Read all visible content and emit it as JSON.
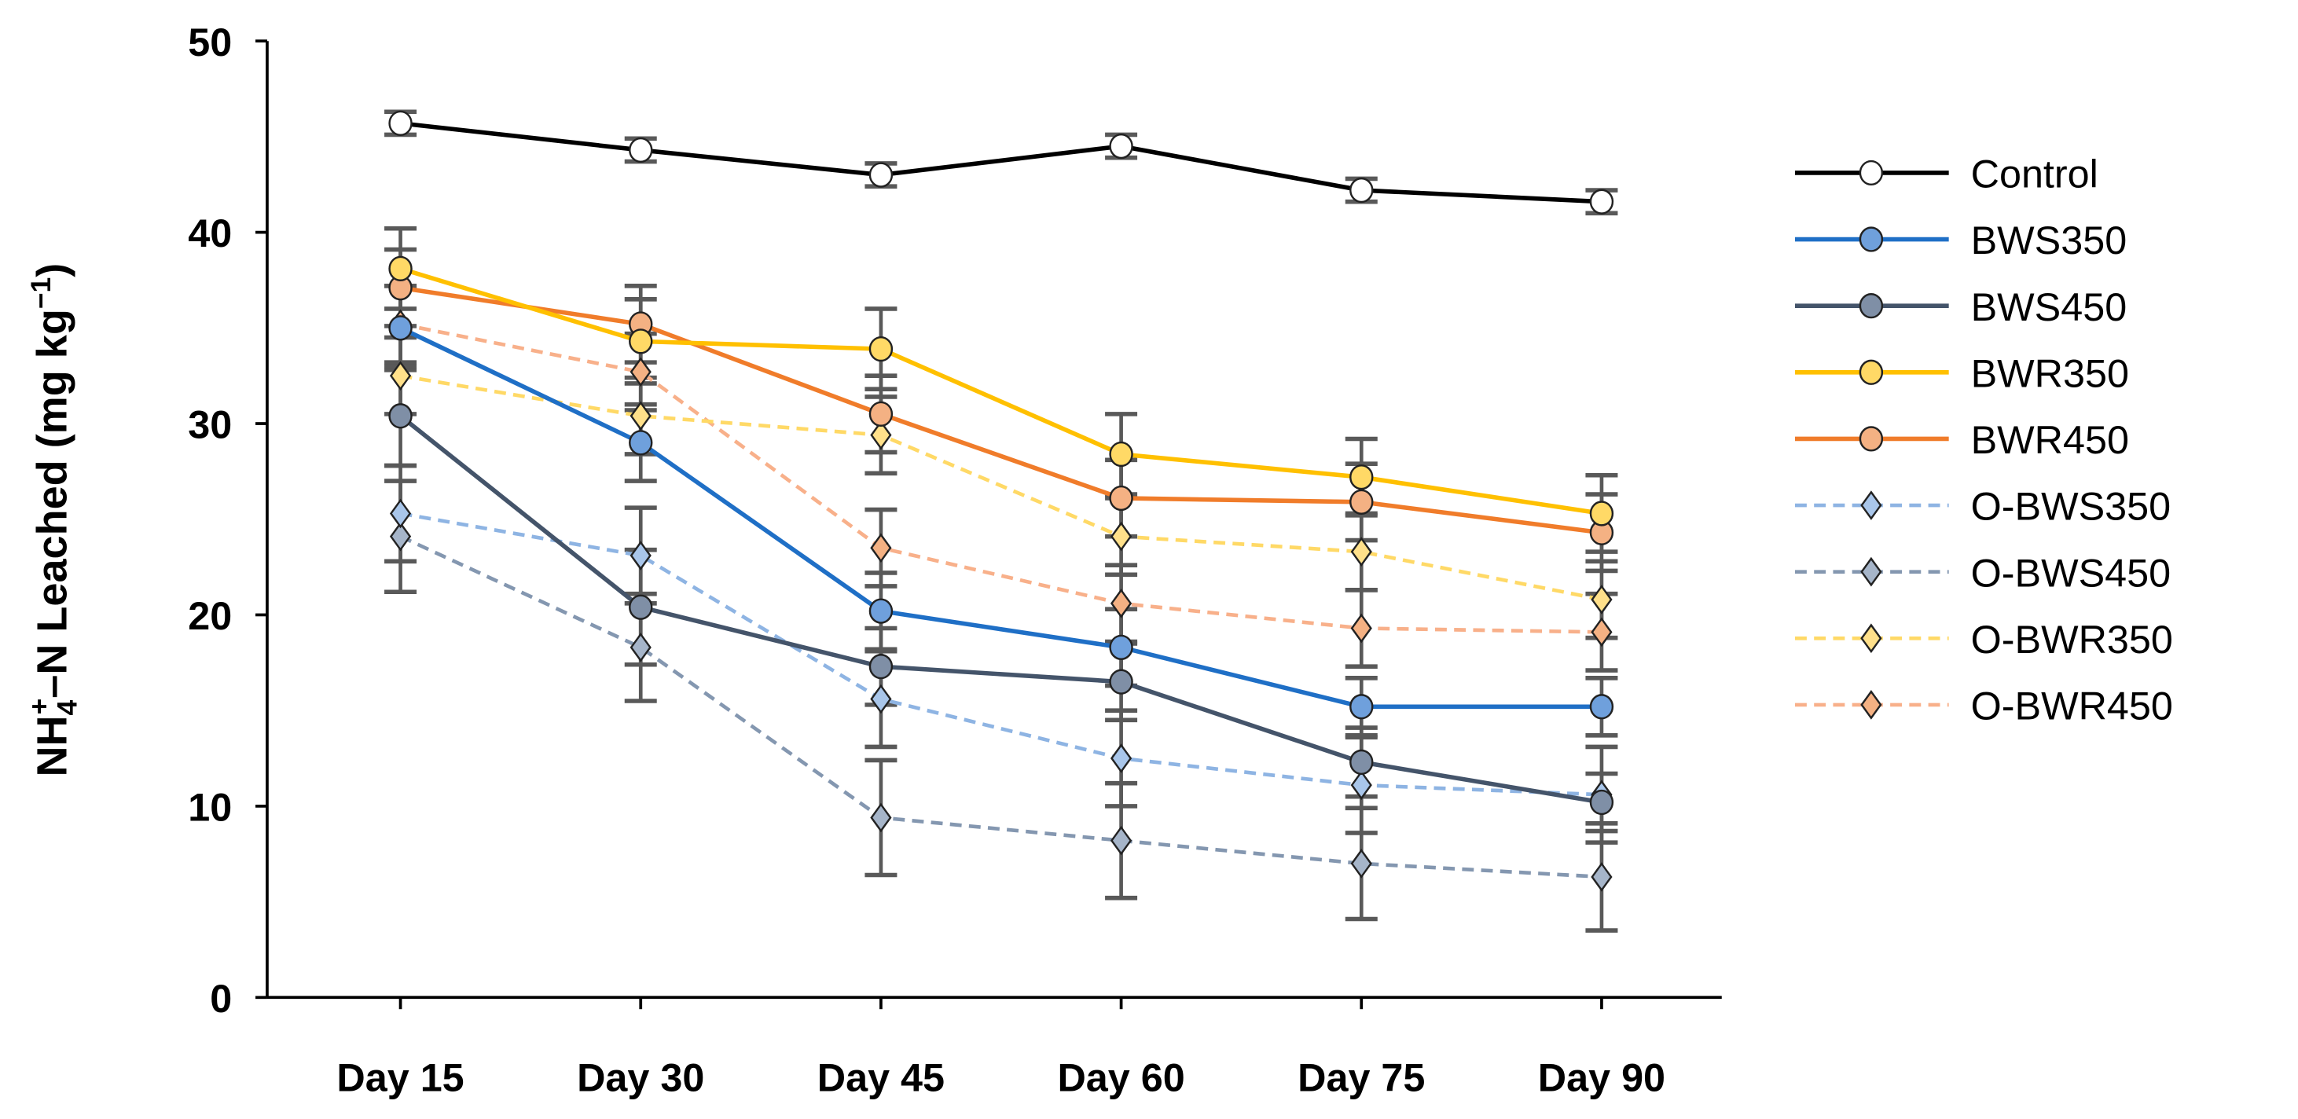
{
  "chart_data": {
    "type": "line",
    "title": "",
    "xlabel": "",
    "ylabel": "NH4+–N Leached (mg kg−1)",
    "ylabel_parts": {
      "main": "NH",
      "sub": "4",
      "sup": "+",
      "rest": "–N Leached (mg kg",
      "unit_sup": "−1",
      "close": ")"
    },
    "categories": [
      "Day 15",
      "Day 30",
      "Day 45",
      "Day 60",
      "Day 75",
      "Day 90"
    ],
    "ylim": [
      0,
      50
    ],
    "yticks": [
      0,
      10,
      20,
      30,
      40,
      50
    ],
    "grid": false,
    "legend_position": "right",
    "series": [
      {
        "name": "Control",
        "color": "#000000",
        "fill": "#ffffff",
        "marker": "circle",
        "dash": false,
        "values": [
          45.7,
          44.3,
          43.0,
          44.5,
          42.2,
          41.6
        ],
        "errors": [
          0.6,
          0.6,
          0.6,
          0.6,
          0.6,
          0.6
        ]
      },
      {
        "name": "BWS350",
        "color": "#1f6fc6",
        "fill": "#6fa0dc",
        "marker": "circle",
        "dash": false,
        "values": [
          35.0,
          29.0,
          20.2,
          18.3,
          15.2,
          15.2
        ],
        "errors": [
          2.2,
          2.0,
          2.0,
          2.0,
          1.5,
          1.5
        ]
      },
      {
        "name": "BWS450",
        "color": "#44546a",
        "fill": "#7f8fa6",
        "marker": "circle",
        "dash": false,
        "values": [
          30.4,
          20.4,
          17.3,
          16.5,
          12.3,
          10.2
        ],
        "errors": [
          2.6,
          3.0,
          2.0,
          2.0,
          1.8,
          1.5
        ]
      },
      {
        "name": "BWR350",
        "color": "#ffc000",
        "fill": "#ffd966",
        "marker": "circle",
        "dash": false,
        "values": [
          38.1,
          34.3,
          33.9,
          28.4,
          27.2,
          25.3
        ],
        "errors": [
          2.1,
          2.2,
          2.1,
          2.1,
          2.0,
          2.0
        ]
      },
      {
        "name": "BWR450",
        "color": "#f07c2a",
        "fill": "#f4b183",
        "marker": "circle",
        "dash": false,
        "values": [
          37.1,
          35.2,
          30.5,
          26.1,
          25.9,
          24.3
        ],
        "errors": [
          2.0,
          2.0,
          2.0,
          2.0,
          2.0,
          2.0
        ]
      },
      {
        "name": "O-BWS350",
        "color": "#8eb4e3",
        "fill": "#a9c6ea",
        "marker": "diamond",
        "dash": true,
        "values": [
          25.3,
          23.1,
          15.6,
          12.5,
          11.1,
          10.6
        ],
        "errors": [
          2.5,
          2.5,
          2.5,
          2.5,
          2.5,
          2.5
        ]
      },
      {
        "name": "O-BWS450",
        "color": "#8497b0",
        "fill": "#a6b5c9",
        "marker": "diamond",
        "dash": true,
        "values": [
          24.1,
          18.3,
          9.4,
          8.2,
          7.0,
          6.3
        ],
        "errors": [
          2.9,
          2.8,
          3.0,
          3.0,
          2.9,
          2.8
        ]
      },
      {
        "name": "O-BWR350",
        "color": "#ffd966",
        "fill": "#ffe08a",
        "marker": "diamond",
        "dash": true,
        "values": [
          32.5,
          30.4,
          29.4,
          24.1,
          23.3,
          20.8
        ],
        "errors": [
          2.0,
          2.0,
          2.0,
          2.0,
          2.0,
          2.0
        ]
      },
      {
        "name": "O-BWR450",
        "color": "#f8b08a",
        "fill": "#f4b183",
        "marker": "diamond",
        "dash": true,
        "values": [
          35.2,
          32.7,
          23.5,
          20.6,
          19.3,
          19.1
        ],
        "errors": [
          2.0,
          2.0,
          2.0,
          2.0,
          2.0,
          2.0
        ]
      }
    ]
  }
}
